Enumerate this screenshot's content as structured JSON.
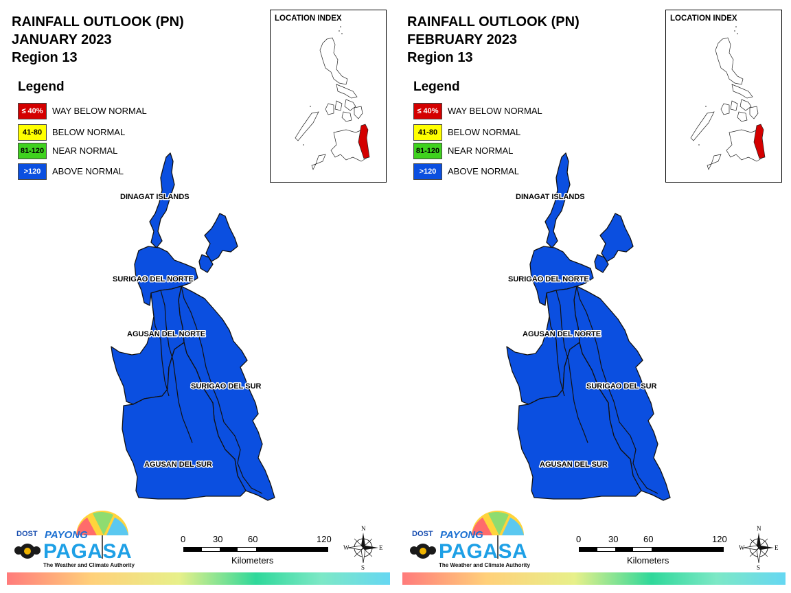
{
  "panels": [
    {
      "title_line1": "RAINFALL OUTLOOK (PN)",
      "title_line2": "JANUARY 2023",
      "title_line3": "Region 13",
      "legend_title": "Legend",
      "legend": [
        {
          "swatch": "≤ 40%",
          "label": "WAY BELOW NORMAL",
          "color": "#d40000",
          "text_color": "#ffffff"
        },
        {
          "swatch": "41-80",
          "label": "BELOW NORMAL",
          "color": "#ffff00",
          "text_color": "#000000"
        },
        {
          "swatch": "81-120",
          "label": "NEAR NORMAL",
          "color": "#3fd21e",
          "text_color": "#000000"
        },
        {
          "swatch": ">120",
          "label": "ABOVE NORMAL",
          "color": "#0b4fe0",
          "text_color": "#ffffff"
        }
      ],
      "location_index_label": "LOCATION INDEX",
      "provinces": {
        "dinagat": "DINAGAT ISLANDS",
        "surigao_norte": "SURIGAO DEL NORTE",
        "agusan_norte": "AGUSAN DEL NORTE",
        "surigao_sur": "SURIGAO DEL SUR",
        "agusan_sur": "AGUSAN DEL SUR"
      },
      "region_fill": "#0b4fe0",
      "scale": {
        "n0": "0",
        "n30": "30",
        "n60": "60",
        "n120": "120",
        "unit": "Kilometers"
      },
      "compass": {
        "n": "N",
        "s": "S",
        "e": "E",
        "w": "W"
      },
      "logo": {
        "dost": "DOST",
        "payong": "PAYONG",
        "pagasa": "PAGASA",
        "tagline": "The Weather and Climate Authority"
      }
    },
    {
      "title_line1": "RAINFALL OUTLOOK (PN)",
      "title_line2": "FEBRUARY 2023",
      "title_line3": "Region 13",
      "legend_title": "Legend",
      "legend": [
        {
          "swatch": "≤ 40%",
          "label": "WAY BELOW NORMAL",
          "color": "#d40000",
          "text_color": "#ffffff"
        },
        {
          "swatch": "41-80",
          "label": "BELOW NORMAL",
          "color": "#ffff00",
          "text_color": "#000000"
        },
        {
          "swatch": "81-120",
          "label": "NEAR NORMAL",
          "color": "#3fd21e",
          "text_color": "#000000"
        },
        {
          "swatch": ">120",
          "label": "ABOVE NORMAL",
          "color": "#0b4fe0",
          "text_color": "#ffffff"
        }
      ],
      "location_index_label": "LOCATION INDEX",
      "provinces": {
        "dinagat": "DINAGAT ISLANDS",
        "surigao_norte": "SURIGAO DEL NORTE",
        "agusan_norte": "AGUSAN DEL NORTE",
        "surigao_sur": "SURIGAO DEL SUR",
        "agusan_sur": "AGUSAN DEL SUR"
      },
      "region_fill": "#0b4fe0",
      "scale": {
        "n0": "0",
        "n30": "30",
        "n60": "60",
        "n120": "120",
        "unit": "Kilometers"
      },
      "compass": {
        "n": "N",
        "s": "S",
        "e": "E",
        "w": "W"
      },
      "logo": {
        "dost": "DOST",
        "payong": "PAYONG",
        "pagasa": "PAGASA",
        "tagline": "The Weather and Climate Authority"
      }
    }
  ]
}
